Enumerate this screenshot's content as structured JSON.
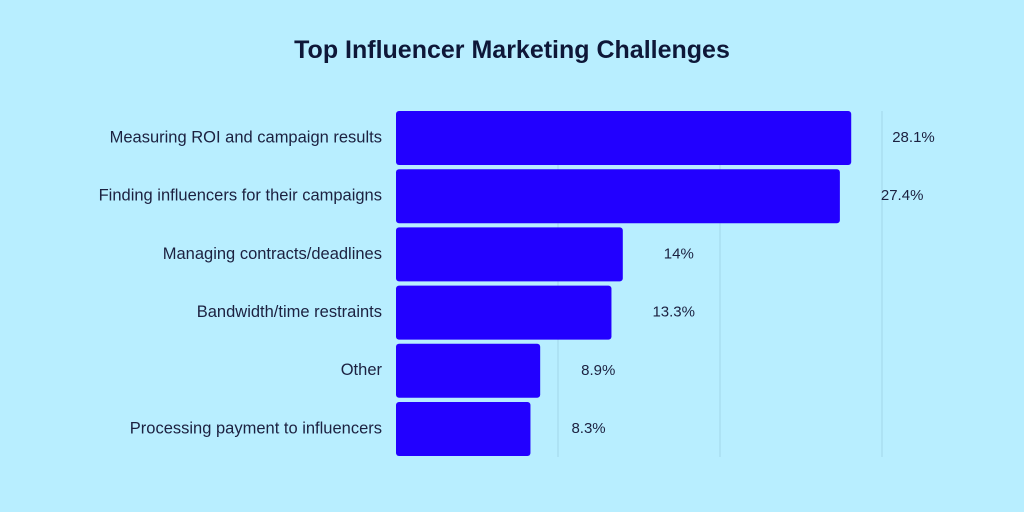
{
  "chart_data": {
    "type": "bar",
    "orientation": "horizontal",
    "title": "Top Influencer Marketing Challenges",
    "categories": [
      "Measuring ROI and campaign results",
      "Finding influencers for their campaigns",
      "Managing contracts/deadlines",
      "Bandwidth/time restraints",
      "Other",
      "Processing payment to influencers"
    ],
    "values": [
      28.1,
      27.4,
      14,
      13.3,
      8.9,
      8.3
    ],
    "value_labels": [
      "28.1%",
      "27.4%",
      "14%",
      "13.3%",
      "8.9%",
      "8.3%"
    ],
    "unit": "%",
    "xlim": [
      0,
      30
    ],
    "grid": true,
    "legend": "none",
    "colors": {
      "bar": "#2200ff",
      "background": "#b8eeff",
      "grid": "#a2d6e8",
      "text": "#1c2140"
    }
  }
}
